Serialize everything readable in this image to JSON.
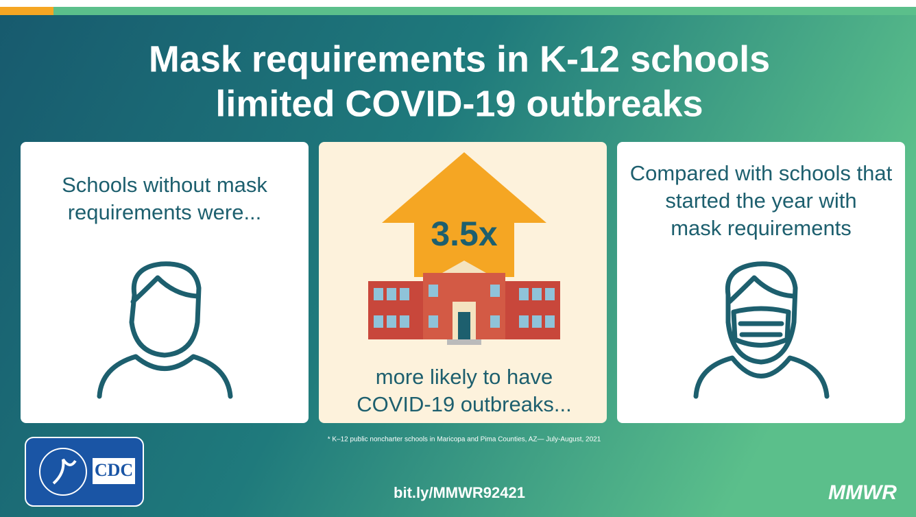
{
  "header": {
    "title": [
      "Mask requirements in K-12 schools",
      "limited COVID-19 outbreaks"
    ]
  },
  "panels": [
    {
      "text": [
        "Schools without mask",
        "requirements were..."
      ]
    },
    {
      "stat": "3.5x",
      "text": [
        "more likely to have",
        "COVID-19 outbreaks..."
      ]
    },
    {
      "text": [
        "Compared with schools that",
        "started the year with",
        "mask requirements"
      ]
    }
  ],
  "footnote": "* K–12 public noncharter schools in Maricopa and Pima Counties, AZ— July-August, 2021",
  "footer": {
    "logo": "CDC",
    "url": "bit.ly/MMWR92421",
    "brand": "MMWR"
  }
}
